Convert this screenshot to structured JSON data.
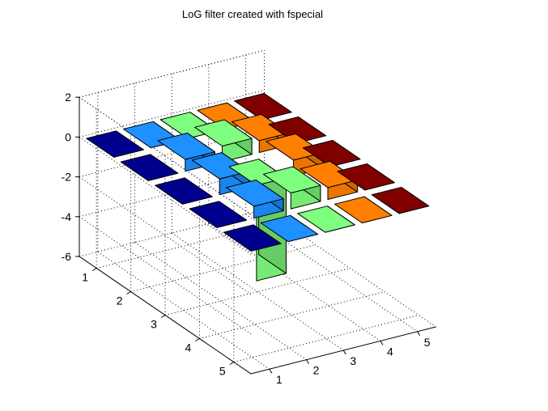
{
  "chart_data": {
    "type": "bar3",
    "title": "LoG filter created with fspecial",
    "x_ticks": [
      "1",
      "2",
      "3",
      "4",
      "5"
    ],
    "y_ticks": [
      "1",
      "2",
      "3",
      "4",
      "5"
    ],
    "z_ticks": [
      "2",
      "0",
      "-2",
      "-4",
      "-6"
    ],
    "zlim": [
      -6,
      2
    ],
    "grid": true,
    "rows": [
      {
        "y": 1,
        "values": [
          0.0,
          0.0,
          0.0,
          0.0,
          0.0
        ]
      },
      {
        "y": 2,
        "values": [
          0.0,
          0.6,
          0.8,
          0.6,
          0.0
        ]
      },
      {
        "y": 3,
        "values": [
          0.0,
          0.8,
          -4.8,
          0.8,
          0.0
        ]
      },
      {
        "y": 4,
        "values": [
          0.0,
          0.6,
          0.8,
          0.6,
          0.0
        ]
      },
      {
        "y": 5,
        "values": [
          0.0,
          0.0,
          0.0,
          0.0,
          0.0
        ]
      }
    ],
    "series_colors": [
      "#00008f",
      "#1e90ff",
      "#7fff7f",
      "#ff7f00",
      "#800000"
    ]
  }
}
